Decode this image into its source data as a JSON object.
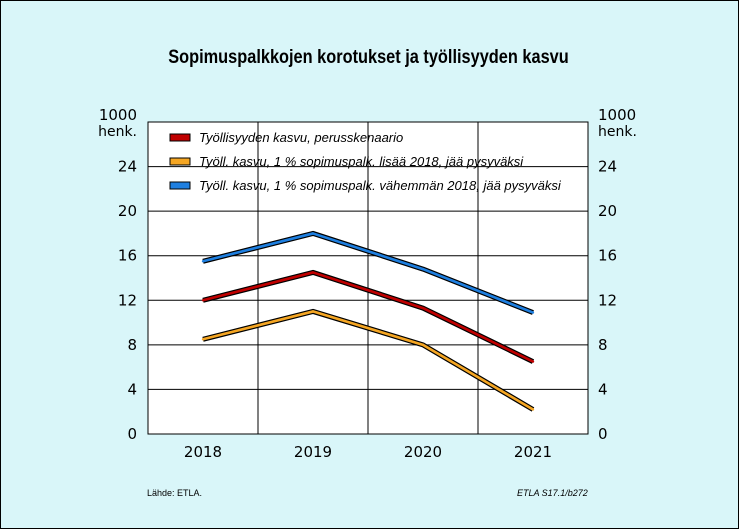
{
  "chart_data": {
    "type": "line",
    "title": "Sopimuspalkkojen korotukset ja työllisyyden kasvu",
    "unit_left": [
      "1000",
      "henk."
    ],
    "unit_right": [
      "1000",
      "henk."
    ],
    "categories": [
      "2018",
      "2019",
      "2020",
      "2021"
    ],
    "ylim": [
      0,
      28
    ],
    "yticks": [
      0,
      4,
      8,
      12,
      16,
      20,
      24
    ],
    "grid": true,
    "legend_position": "top-left inside",
    "series": [
      {
        "name": "Työllisyyden kasvu, perusskenaario",
        "color": "#c00000",
        "values": [
          12.0,
          14.5,
          11.3,
          6.5
        ]
      },
      {
        "name": "Työll. kasvu, 1 % sopimuspalk. lisää 2018, jää pysyväksi",
        "color": "#f5a623",
        "values": [
          8.5,
          11.0,
          8.0,
          2.2
        ]
      },
      {
        "name": "Työll. kasvu, 1 % sopimuspalk. vähemmän 2018, jää pysyväksi",
        "color": "#1e7fe0",
        "values": [
          15.5,
          18.0,
          14.8,
          10.9
        ]
      }
    ]
  },
  "footer": {
    "source": "Lähde:   ETLA.",
    "code": "ETLA S17.1/b272"
  }
}
